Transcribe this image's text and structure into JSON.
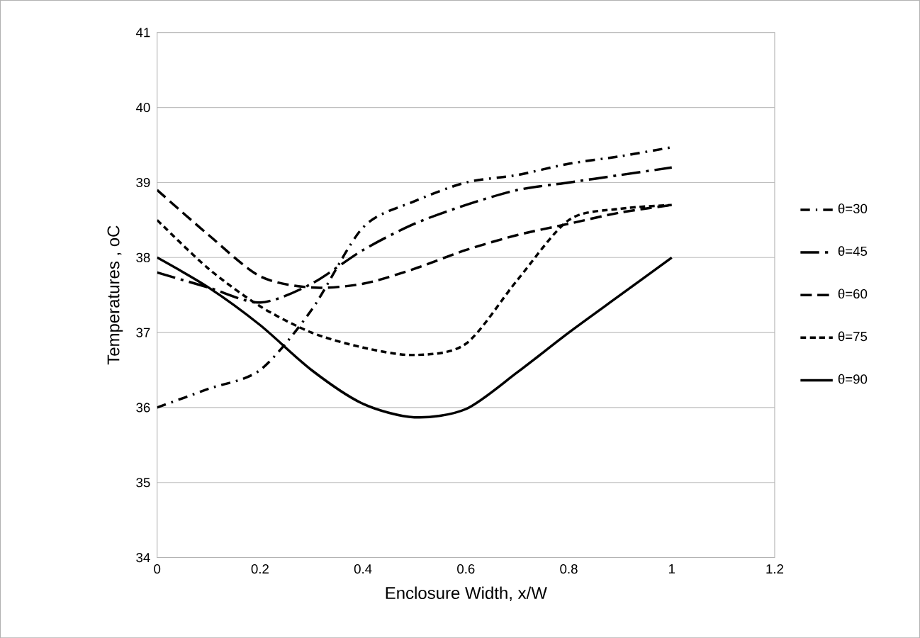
{
  "chart_data": {
    "type": "line",
    "xlabel": "Enclosure Width, x/W",
    "ylabel": "Temperatures , oC",
    "xlim": [
      0,
      1.2
    ],
    "xticks": [
      0,
      0.2,
      0.4,
      0.6,
      0.8,
      1,
      1.2
    ],
    "ylim": [
      34,
      41
    ],
    "yticks": [
      34,
      35,
      36,
      37,
      38,
      39,
      40,
      41
    ],
    "grid": "y",
    "legend": "right",
    "marker": "none",
    "x": [
      0,
      0.1,
      0.2,
      0.3,
      0.4,
      0.5,
      0.6,
      0.7,
      0.8,
      0.9,
      1
    ],
    "series": [
      {
        "name": "θ=30",
        "color": "#000000",
        "line_style": "dashdot",
        "values": [
          36.0,
          36.25,
          36.5,
          37.3,
          38.4,
          38.75,
          39.0,
          39.1,
          39.25,
          39.35,
          39.47
        ]
      },
      {
        "name": "θ=45",
        "color": "#000000",
        "line_style": "longdashdot",
        "values": [
          37.8,
          37.6,
          37.4,
          37.65,
          38.1,
          38.45,
          38.7,
          38.9,
          39.0,
          39.1,
          39.2
        ]
      },
      {
        "name": "θ=60",
        "color": "#000000",
        "line_style": "dashed",
        "values": [
          38.9,
          38.3,
          37.75,
          37.6,
          37.65,
          37.85,
          38.1,
          38.3,
          38.45,
          38.6,
          38.7
        ]
      },
      {
        "name": "θ=75",
        "color": "#000000",
        "line_style": "dotted",
        "values": [
          38.5,
          37.85,
          37.35,
          37.0,
          36.8,
          36.7,
          36.85,
          37.7,
          38.5,
          38.65,
          38.7
        ]
      },
      {
        "name": "θ=90",
        "color": "#000000",
        "line_style": "solid",
        "values": [
          38.0,
          37.6,
          37.1,
          36.5,
          36.05,
          35.87,
          35.98,
          36.47,
          37.0,
          37.5,
          38.0
        ]
      }
    ]
  }
}
